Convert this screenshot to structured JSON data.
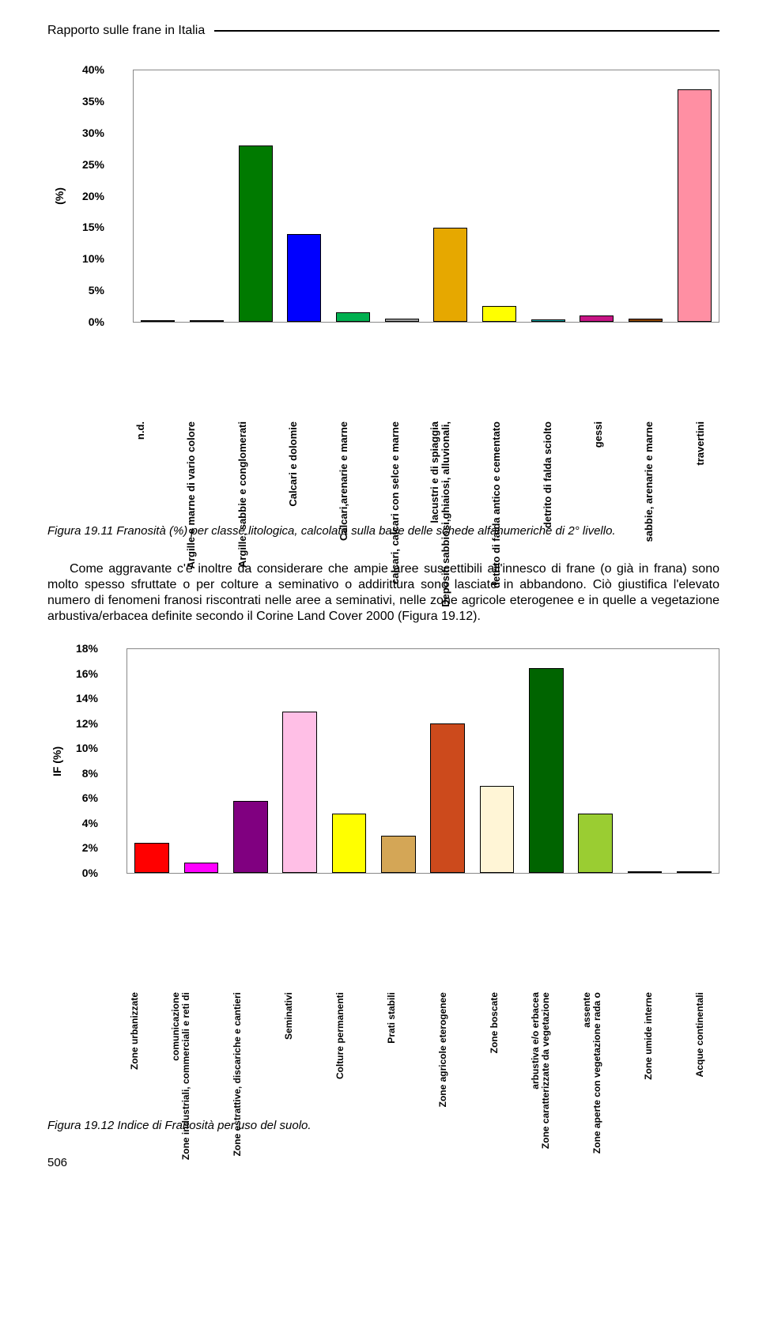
{
  "header": {
    "title": "Rapporto sulle frane in Italia"
  },
  "chart1": {
    "type": "bar",
    "ylabel": "(%)",
    "ymax": 40,
    "ystep": 5,
    "yticks": [
      "40%",
      "35%",
      "30%",
      "25%",
      "20%",
      "15%",
      "10%",
      "5%",
      "0%"
    ],
    "bars": [
      {
        "label": "n.d.",
        "value": 0.3,
        "color": "#c0c0c0"
      },
      {
        "label": "Argille e marne di vario colore",
        "value": 0.3,
        "color": "#ff8000"
      },
      {
        "label": "Argille, sabbie e conglomerati",
        "value": 28,
        "color": "#007a00"
      },
      {
        "label": "Calcari e dolomie",
        "value": 14,
        "color": "#0000ff"
      },
      {
        "label": "Calcari,arenarie e marne",
        "value": 1.5,
        "color": "#00b050"
      },
      {
        "label": "calcari, calcari con selce e marne",
        "value": 0.5,
        "color": "#a0a0a0"
      },
      {
        "label": "Depositi sabbiosi,ghiaiosi, alluvionali,",
        "label2": "lacustri e di spiaggia",
        "value": 15,
        "color": "#e6a800"
      },
      {
        "label": "detrito di falda antico e cementato",
        "value": 2.5,
        "color": "#ffff00"
      },
      {
        "label": "detrito di falda sciolto",
        "value": 0.4,
        "color": "#00b0b0"
      },
      {
        "label": "gessi",
        "value": 1,
        "color": "#c71585"
      },
      {
        "label": "sabbie, arenarie e marne",
        "value": 0.5,
        "color": "#8a4500"
      },
      {
        "label": "travertini",
        "value": 37,
        "color": "#ff8fa3"
      }
    ]
  },
  "caption1": "Figura 19.11 Franosità (%) per classe litologica, calcolata sulla base delle schede alfanumeriche di 2° livello.",
  "body": "Come aggravante c'è inoltre da considerare che ampie aree suscettibili all'innesco di frane (o già in frana) sono molto spesso sfruttate o per colture a seminativo o addirittura sono lasciate in abbandono. Ciò giustifica l'elevato numero di fenomeni franosi riscontrati nelle aree a seminativi, nelle zone agricole eterogenee e in quelle a vegetazione arbustiva/erbacea definite secondo il Corine Land Cover 2000 (Figura 19.12).",
  "chart2": {
    "type": "bar",
    "ylabel": "IF (%)",
    "ymax": 18,
    "ystep": 2,
    "yticks": [
      "18%",
      "16%",
      "14%",
      "12%",
      "10%",
      "8%",
      "6%",
      "4%",
      "2%",
      "0%"
    ],
    "bars": [
      {
        "label": "Zone urbanizzate",
        "value": 2.4,
        "color": "#ff0000"
      },
      {
        "label": "Zone industriali, commerciali e reti di",
        "label2": "comunicazione",
        "value": 0.8,
        "color": "#ff00ff"
      },
      {
        "label": "Zone estrattive, discariche e cantieri",
        "value": 5.8,
        "color": "#800080"
      },
      {
        "label": "Seminativi",
        "value": 13,
        "color": "#ffbfe6"
      },
      {
        "label": "Colture permanenti",
        "value": 4.8,
        "color": "#ffff00"
      },
      {
        "label": "Prati stabili",
        "value": 3,
        "color": "#d4a656"
      },
      {
        "label": "Zone agricole eterogenee",
        "value": 12,
        "color": "#cc4a1c"
      },
      {
        "label": "Zone boscate",
        "value": 7,
        "color": "#fff5d6"
      },
      {
        "label": "Zone caratterizzate da vegetazione",
        "label2": "arbustiva e/o erbacea",
        "value": 16.5,
        "color": "#006400"
      },
      {
        "label": "Zone aperte con vegetazione rada o",
        "label2": "assente",
        "value": 4.8,
        "color": "#9acd32"
      },
      {
        "label": "Zone umide interne",
        "value": 0,
        "color": "#808080"
      },
      {
        "label": "Acque continentali",
        "value": 0,
        "color": "#808080"
      }
    ]
  },
  "caption2": "Figura 19.12 Indice di Franosità per uso del suolo.",
  "page_number": "506"
}
